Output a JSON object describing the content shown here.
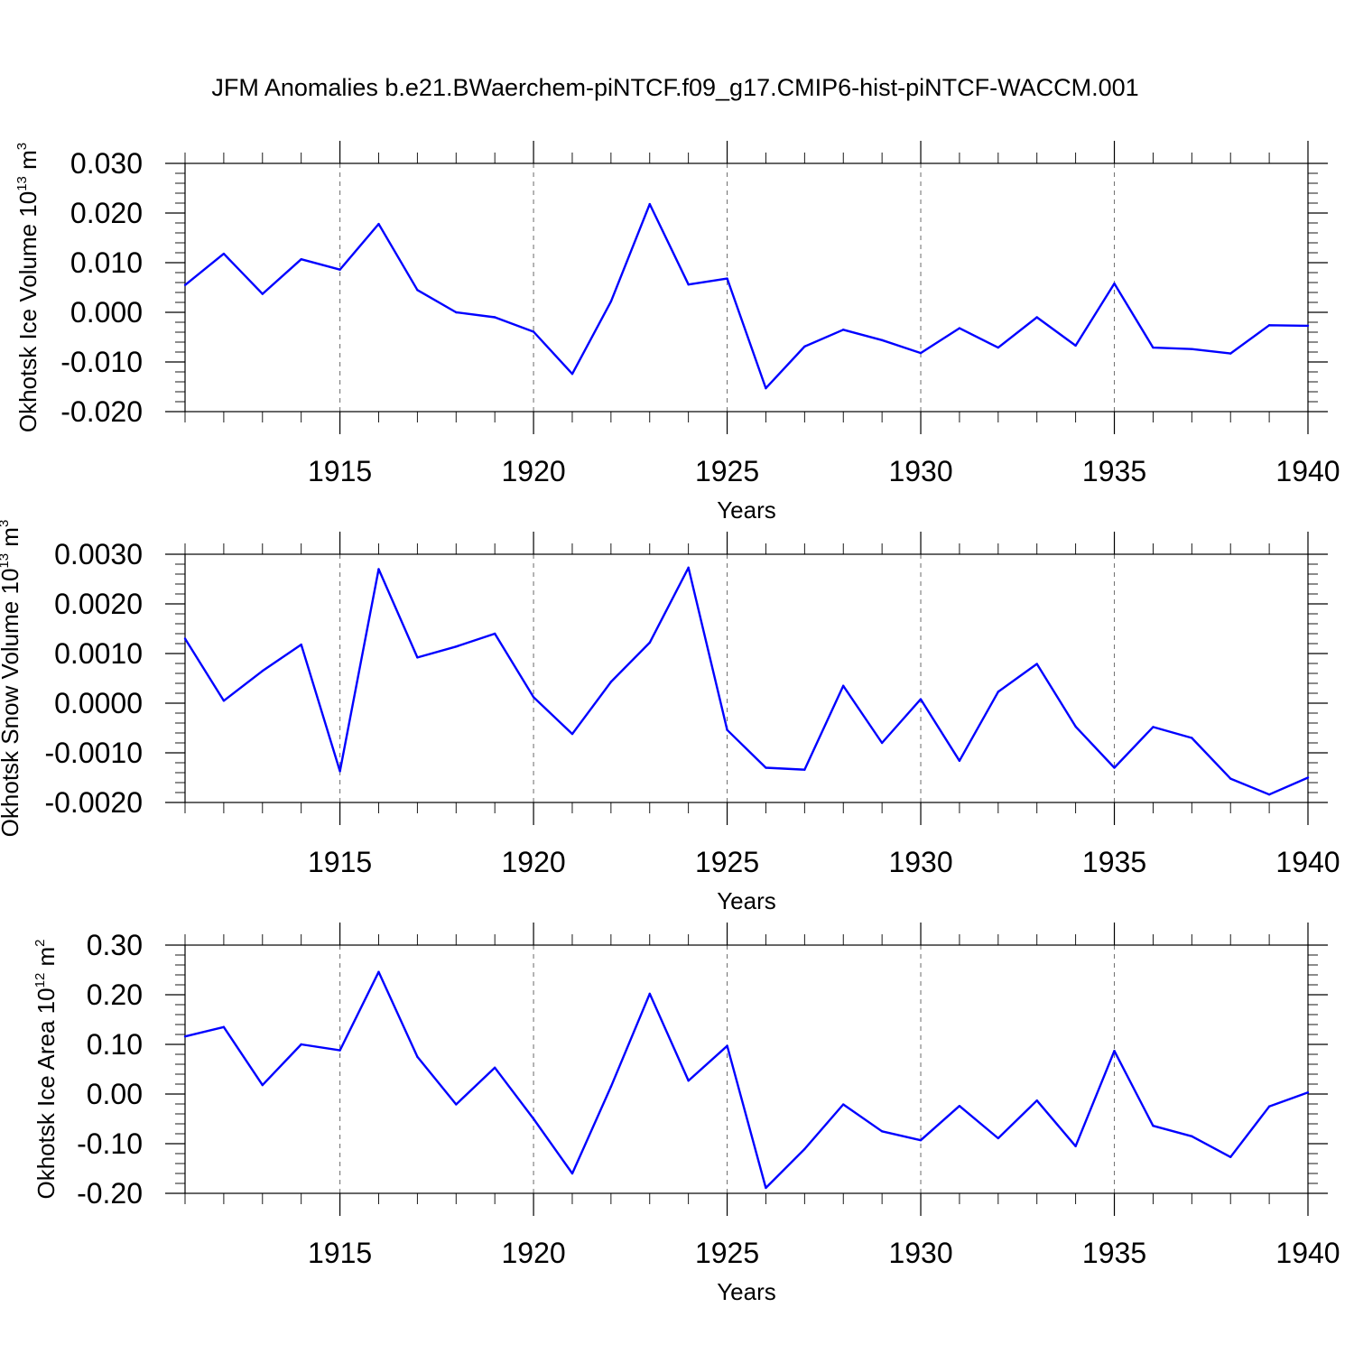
{
  "title": "JFM Anomalies b.e21.BWaerchem-piNTCF.f09_g17.CMIP6-hist-piNTCF-WACCM.001",
  "line_color": "#0000ff",
  "chart_data": [
    {
      "type": "line",
      "title": "",
      "xlabel": "Years",
      "ylabel": "Okhotsk Ice Volume 10",
      "ylabel_exp": "13",
      "ylabel_unit": " m",
      "ylabel_unit_exp": "3",
      "xlim": [
        1911,
        1940
      ],
      "ylim": [
        -0.02,
        0.03
      ],
      "x_ticks": [
        1915,
        1920,
        1925,
        1930,
        1935,
        1940
      ],
      "x_tick_labels": [
        "1915",
        "1920",
        "1925",
        "1930",
        "1935",
        "1940"
      ],
      "y_ticks": [
        -0.02,
        -0.01,
        0.0,
        0.01,
        0.02,
        0.03
      ],
      "y_tick_labels": [
        "-0.020",
        "-0.010",
        "0.000",
        "0.010",
        "0.020",
        "0.030"
      ],
      "y_minor_step": 0.002,
      "grid": "vertical dashed at major x ticks",
      "series": [
        {
          "x": [
            1911,
            1912,
            1913,
            1914,
            1915,
            1916,
            1917,
            1918,
            1919,
            1920,
            1921,
            1922,
            1923,
            1924,
            1925,
            1926,
            1927,
            1928,
            1929,
            1930,
            1931,
            1932,
            1933,
            1934,
            1935,
            1936,
            1937,
            1938,
            1939,
            1940
          ],
          "values": [
            0.0055,
            0.0118,
            0.0037,
            0.0107,
            0.0086,
            0.0178,
            0.0045,
            0.0,
            -0.001,
            -0.0039,
            -0.0124,
            0.0022,
            0.0218,
            0.0056,
            0.0068,
            -0.0153,
            -0.0069,
            -0.0035,
            -0.0056,
            -0.0082,
            -0.0032,
            -0.0071,
            -0.001,
            -0.0067,
            0.0058,
            -0.0071,
            -0.0074,
            -0.0083,
            -0.0026,
            -0.0027
          ]
        }
      ]
    },
    {
      "type": "line",
      "title": "",
      "xlabel": "Years",
      "ylabel": "Okhotsk Snow Volume 10",
      "ylabel_exp": "13",
      "ylabel_unit": " m",
      "ylabel_unit_exp": "3",
      "xlim": [
        1911,
        1940
      ],
      "ylim": [
        -0.002,
        0.003
      ],
      "x_ticks": [
        1915,
        1920,
        1925,
        1930,
        1935,
        1940
      ],
      "x_tick_labels": [
        "1915",
        "1920",
        "1925",
        "1930",
        "1935",
        "1940"
      ],
      "y_ticks": [
        -0.002,
        -0.001,
        0.0,
        0.001,
        0.002,
        0.003
      ],
      "y_tick_labels": [
        "-0.0020",
        "-0.0010",
        "0.0000",
        "0.0010",
        "0.0020",
        "0.0030"
      ],
      "y_minor_step": 0.0002,
      "grid": "vertical dashed at major x ticks",
      "series": [
        {
          "x": [
            1911,
            1912,
            1913,
            1914,
            1915,
            1916,
            1917,
            1918,
            1919,
            1920,
            1921,
            1922,
            1923,
            1924,
            1925,
            1926,
            1927,
            1928,
            1929,
            1930,
            1931,
            1932,
            1933,
            1934,
            1935,
            1936,
            1937,
            1938,
            1939,
            1940
          ],
          "values": [
            0.0013,
            5e-05,
            0.00065,
            0.00118,
            -0.00137,
            0.0027,
            0.00092,
            0.00114,
            0.0014,
            0.00012,
            -0.00062,
            0.00043,
            0.00122,
            0.00273,
            -0.00054,
            -0.0013,
            -0.00134,
            0.00035,
            -0.0008,
            8e-05,
            -0.00116,
            0.00023,
            0.00079,
            -0.00047,
            -0.0013,
            -0.00048,
            -0.0007,
            -0.00152,
            -0.00184,
            -0.0015
          ]
        }
      ]
    },
    {
      "type": "line",
      "title": "",
      "xlabel": "Years",
      "ylabel": "Okhotsk Ice Area 10",
      "ylabel_exp": "12",
      "ylabel_unit": " m",
      "ylabel_unit_exp": "2",
      "xlim": [
        1911,
        1940
      ],
      "ylim": [
        -0.2,
        0.3
      ],
      "x_ticks": [
        1915,
        1920,
        1925,
        1930,
        1935,
        1940
      ],
      "x_tick_labels": [
        "1915",
        "1920",
        "1925",
        "1930",
        "1935",
        "1940"
      ],
      "y_ticks": [
        -0.2,
        -0.1,
        0.0,
        0.1,
        0.2,
        0.3
      ],
      "y_tick_labels": [
        "-0.20",
        "-0.10",
        "0.00",
        "0.10",
        "0.20",
        "0.30"
      ],
      "y_minor_step": 0.02,
      "grid": "vertical dashed at major x ticks",
      "series": [
        {
          "x": [
            1911,
            1912,
            1913,
            1914,
            1915,
            1916,
            1917,
            1918,
            1919,
            1920,
            1921,
            1922,
            1923,
            1924,
            1925,
            1926,
            1927,
            1928,
            1929,
            1930,
            1931,
            1932,
            1933,
            1934,
            1935,
            1936,
            1937,
            1938,
            1939,
            1940
          ],
          "values": [
            0.116,
            0.135,
            0.018,
            0.1,
            0.088,
            0.246,
            0.075,
            -0.021,
            0.053,
            -0.05,
            -0.16,
            0.015,
            0.202,
            0.027,
            0.097,
            -0.189,
            -0.111,
            -0.021,
            -0.075,
            -0.093,
            -0.024,
            -0.089,
            -0.013,
            -0.105,
            0.087,
            -0.064,
            -0.085,
            -0.127,
            -0.025,
            0.003
          ]
        }
      ]
    }
  ]
}
